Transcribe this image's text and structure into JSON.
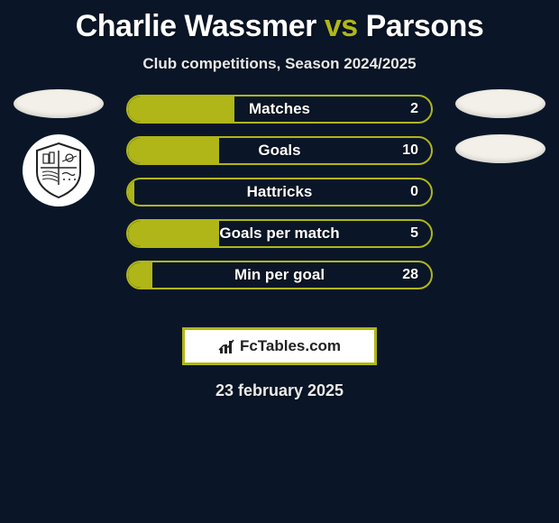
{
  "title": {
    "player1": "Charlie Wassmer",
    "vs": "vs",
    "player2": "Parsons"
  },
  "subtitle": "Club competitions, Season 2024/2025",
  "accent_color": "#b0b618",
  "bar_border_color": "#b0b618",
  "bars": [
    {
      "label": "Matches",
      "value": "2",
      "fill_pct": 35,
      "fill_color": "#b0b618"
    },
    {
      "label": "Goals",
      "value": "10",
      "fill_pct": 30,
      "fill_color": "#b0b618"
    },
    {
      "label": "Hattricks",
      "value": "0",
      "fill_pct": 2,
      "fill_color": "#b0b618"
    },
    {
      "label": "Goals per match",
      "value": "5",
      "fill_pct": 30,
      "fill_color": "#b0b618"
    },
    {
      "label": "Min per goal",
      "value": "28",
      "fill_pct": 8,
      "fill_color": "#b0b618"
    }
  ],
  "left_side": {
    "ellipse_color": "#f2f0e8",
    "has_club_badge": true
  },
  "right_side": {
    "ellipse_color": "#f2f0e8",
    "ellipse_count": 2,
    "has_club_badge": false
  },
  "attribution": {
    "text": "FcTables.com",
    "border_color": "#b0b618"
  },
  "date": "23 february 2025"
}
